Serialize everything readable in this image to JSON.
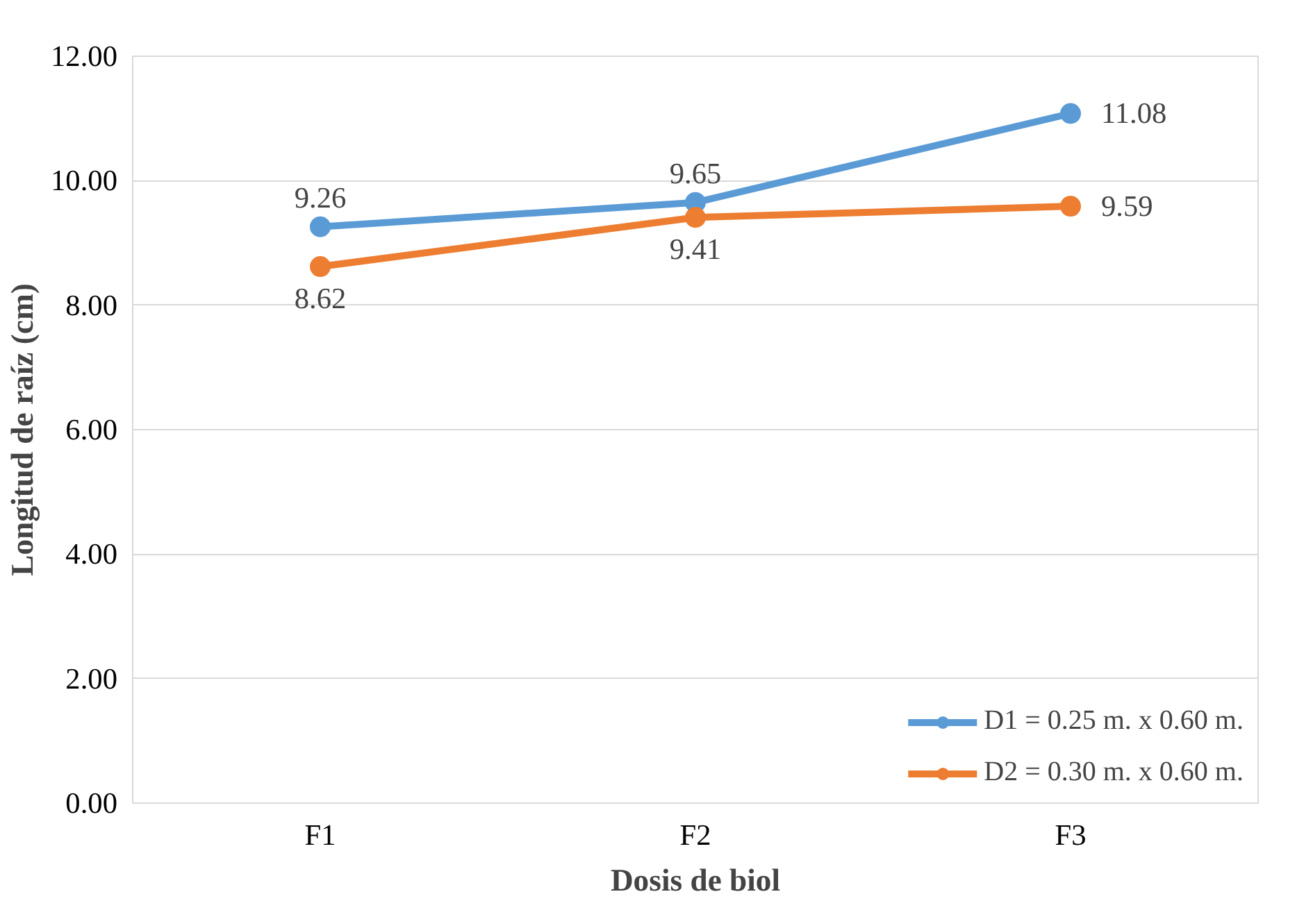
{
  "chart_data": {
    "type": "line",
    "xlabel": "Dosis de biol",
    "ylabel": "Longitud de raíz (cm)",
    "categories": [
      "F1",
      "F2",
      "F3"
    ],
    "series": [
      {
        "name": "D1 = 0.25 m. x 0.60 m.",
        "color": "#5b9bd5",
        "values": [
          9.26,
          9.65,
          11.08
        ]
      },
      {
        "name": "D2 = 0.30 m. x 0.60 m.",
        "color": "#ed7d31",
        "values": [
          8.62,
          9.41,
          9.59
        ]
      }
    ],
    "ylim": [
      0,
      12
    ],
    "yticks": [
      {
        "value": 0,
        "label": "0.00"
      },
      {
        "value": 2,
        "label": "2.00"
      },
      {
        "value": 4,
        "label": "4.00"
      },
      {
        "value": 6,
        "label": "6.00"
      },
      {
        "value": 8,
        "label": "8.00"
      },
      {
        "value": 10,
        "label": "10.00"
      },
      {
        "value": 12,
        "label": "12.00"
      }
    ],
    "grid": "y",
    "legend": "bottom right",
    "marker": "circle",
    "line_style": "solid",
    "data_labels": true
  }
}
